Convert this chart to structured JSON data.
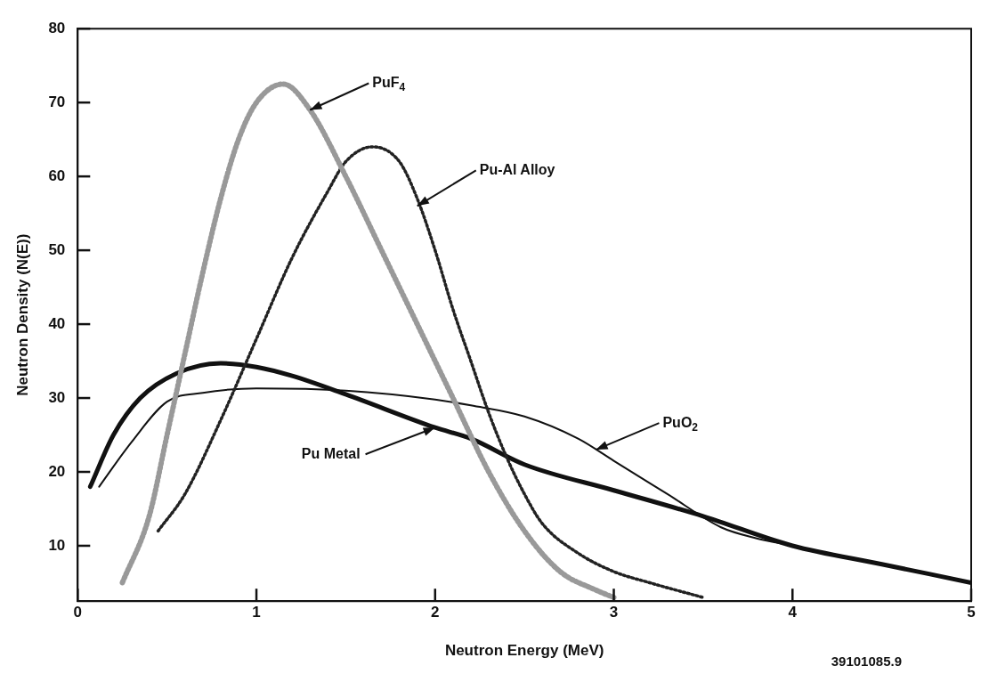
{
  "chart_data": {
    "type": "line",
    "xlabel": "Neutron Energy (MeV)",
    "ylabel": "Neutron Density (N(E))",
    "xlim": [
      0,
      5
    ],
    "xticks": [
      0,
      1,
      2,
      3,
      4,
      5
    ],
    "ylim": [
      2.5,
      80
    ],
    "yticks": [
      10,
      20,
      30,
      40,
      50,
      60,
      70,
      80
    ],
    "grid": false,
    "legend": false,
    "marker": "none",
    "series": [
      {
        "color": "#999999",
        "line_style": "dotted",
        "x": [
          0.25,
          0.4,
          0.5,
          0.6,
          0.7,
          0.8,
          0.9,
          1.0,
          1.15,
          1.3,
          1.5,
          1.7,
          1.9,
          2.1,
          2.3,
          2.5,
          2.7,
          2.9,
          3.0
        ],
        "values": [
          5,
          14,
          25,
          36,
          47,
          57,
          65,
          70,
          72.5,
          69,
          60,
          50,
          40,
          30,
          20,
          12,
          6.5,
          4,
          3
        ]
      },
      {
        "color": "#222222",
        "line_style": "dotted",
        "x": [
          0.45,
          0.6,
          0.8,
          1.0,
          1.2,
          1.4,
          1.5,
          1.65,
          1.8,
          1.9,
          2.0,
          2.1,
          2.2,
          2.3,
          2.4,
          2.5,
          2.6,
          2.8,
          3.0,
          3.2,
          3.5
        ],
        "values": [
          12,
          17,
          27,
          38,
          49,
          58,
          62,
          64,
          62,
          57,
          50,
          42,
          35,
          28,
          22,
          17,
          13,
          9,
          6.5,
          5,
          3
        ]
      },
      {
        "color": "#111111",
        "line_style": "solid",
        "x": [
          0.07,
          0.2,
          0.35,
          0.55,
          0.8,
          1.0,
          1.2,
          1.5,
          2.0,
          2.2,
          2.5,
          3.0,
          3.5,
          4.0,
          4.5,
          5.0
        ],
        "values": [
          18,
          25,
          30,
          33.3,
          34.7,
          34.2,
          33,
          30.5,
          26,
          24.5,
          21,
          17.5,
          14,
          10,
          7.5,
          5
        ]
      },
      {
        "color": "#111111",
        "line_style": "solid",
        "x": [
          0.12,
          0.3,
          0.5,
          0.7,
          1.0,
          1.5,
          2.0,
          2.2,
          2.5,
          2.8,
          3.0,
          3.3,
          3.6,
          3.8,
          4.0,
          4.5,
          5.0
        ],
        "values": [
          18,
          24,
          29.5,
          30.7,
          31.3,
          31,
          29.8,
          29,
          27.5,
          24.5,
          21.5,
          17,
          12.5,
          11,
          10,
          7.5,
          5
        ]
      }
    ],
    "annotations": [
      {
        "text": "PuF$_{4}$",
        "x": 1.3,
        "y": 69
      },
      {
        "text": "Pu-Al Alloy",
        "x": 1.9,
        "y": 56
      },
      {
        "text": "Pu Metal",
        "x": 2.0,
        "y": 26
      },
      {
        "text": "PuO$_{2}$",
        "x": 2.9,
        "y": 23
      },
      "39101085.9"
    ]
  }
}
